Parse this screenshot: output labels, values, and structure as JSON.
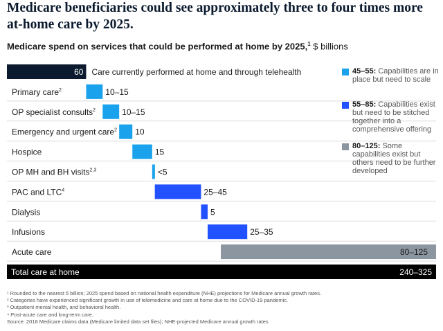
{
  "headline": "Medicare beneficiaries could see approximately three to four times more at-home care by 2025.",
  "subtitle": {
    "bold": "Medicare spend on services that could be performed at home by 2025,",
    "sup": "1",
    "rest": " $ billions"
  },
  "chart_data": {
    "type": "bar",
    "subtype": "waterfall",
    "unit": "$ billions",
    "rows": [
      {
        "label": "",
        "sup": "",
        "low": 60,
        "high": 60,
        "value_label": "60",
        "note": "Care currently performed at home and through telehealth",
        "category": "baseline"
      },
      {
        "label": "Primary care",
        "sup": "2",
        "low": 10,
        "high": 15,
        "value_label": "10–15",
        "category": "45–55"
      },
      {
        "label": "OP specialist consults",
        "sup": "2",
        "low": 10,
        "high": 15,
        "value_label": "10–15",
        "category": "45–55"
      },
      {
        "label": "Emergency and urgent care",
        "sup": "2",
        "low": 10,
        "high": 10,
        "value_label": "10",
        "category": "45–55"
      },
      {
        "label": "Hospice",
        "sup": "",
        "low": 15,
        "high": 15,
        "value_label": "15",
        "category": "45–55"
      },
      {
        "label": "OP MH and BH visits",
        "sup": "2,3",
        "low": 2,
        "high": 2,
        "value_label": "<5",
        "category": "45–55"
      },
      {
        "label": "PAC and LTC",
        "sup": "4",
        "low": 25,
        "high": 45,
        "value_label": "25–45",
        "category": "55–85"
      },
      {
        "label": "Dialysis",
        "sup": "",
        "low": 5,
        "high": 5,
        "value_label": "5",
        "category": "55–85"
      },
      {
        "label": "Infusions",
        "sup": "",
        "low": 25,
        "high": 35,
        "value_label": "25–35",
        "category": "55–85"
      },
      {
        "label": "Acute care",
        "sup": "",
        "low": 80,
        "high": 125,
        "value_label": "80–125",
        "category": "80–125"
      },
      {
        "label": "Total care at home",
        "sup": "",
        "low": 240,
        "high": 325,
        "value_label": "240–325",
        "category": "total"
      }
    ],
    "legend": [
      {
        "range": "45–55:",
        "text": "Capabilities are in place but need to scale",
        "color": "#1aa3ec"
      },
      {
        "range": "55–85:",
        "text": "Capabilities exist but need to be stitched together into a comprehensive offering",
        "color": "#2251ff"
      },
      {
        "range": "80–125:",
        "text": "Some capabilities exist but others need to be further developed",
        "color": "#8c96a0"
      }
    ],
    "legend_position": "right",
    "colors": {
      "baseline": "#0b1a2e",
      "45–55": "#1aa3ec",
      "55–85": "#2251ff",
      "80–125": "#8c96a0",
      "total": "#000000"
    }
  },
  "footnotes": [
    "¹ Rounded to the nearest 5 billion; 2025 spend based on national health expenditure (NHE) projections for Medicare annual growth rates.",
    "² Categories have experienced significant growth in use of telemedicine and care at home due to the COVID-19 pandemic.",
    "³ Outpatient mental health, and behavioral health.",
    "⁴ Post-acute care and long-term care.",
    " Source: 2018 Medicare claims data (Medicare limited data set files); NHE-projected Medicare annual growth rates"
  ]
}
